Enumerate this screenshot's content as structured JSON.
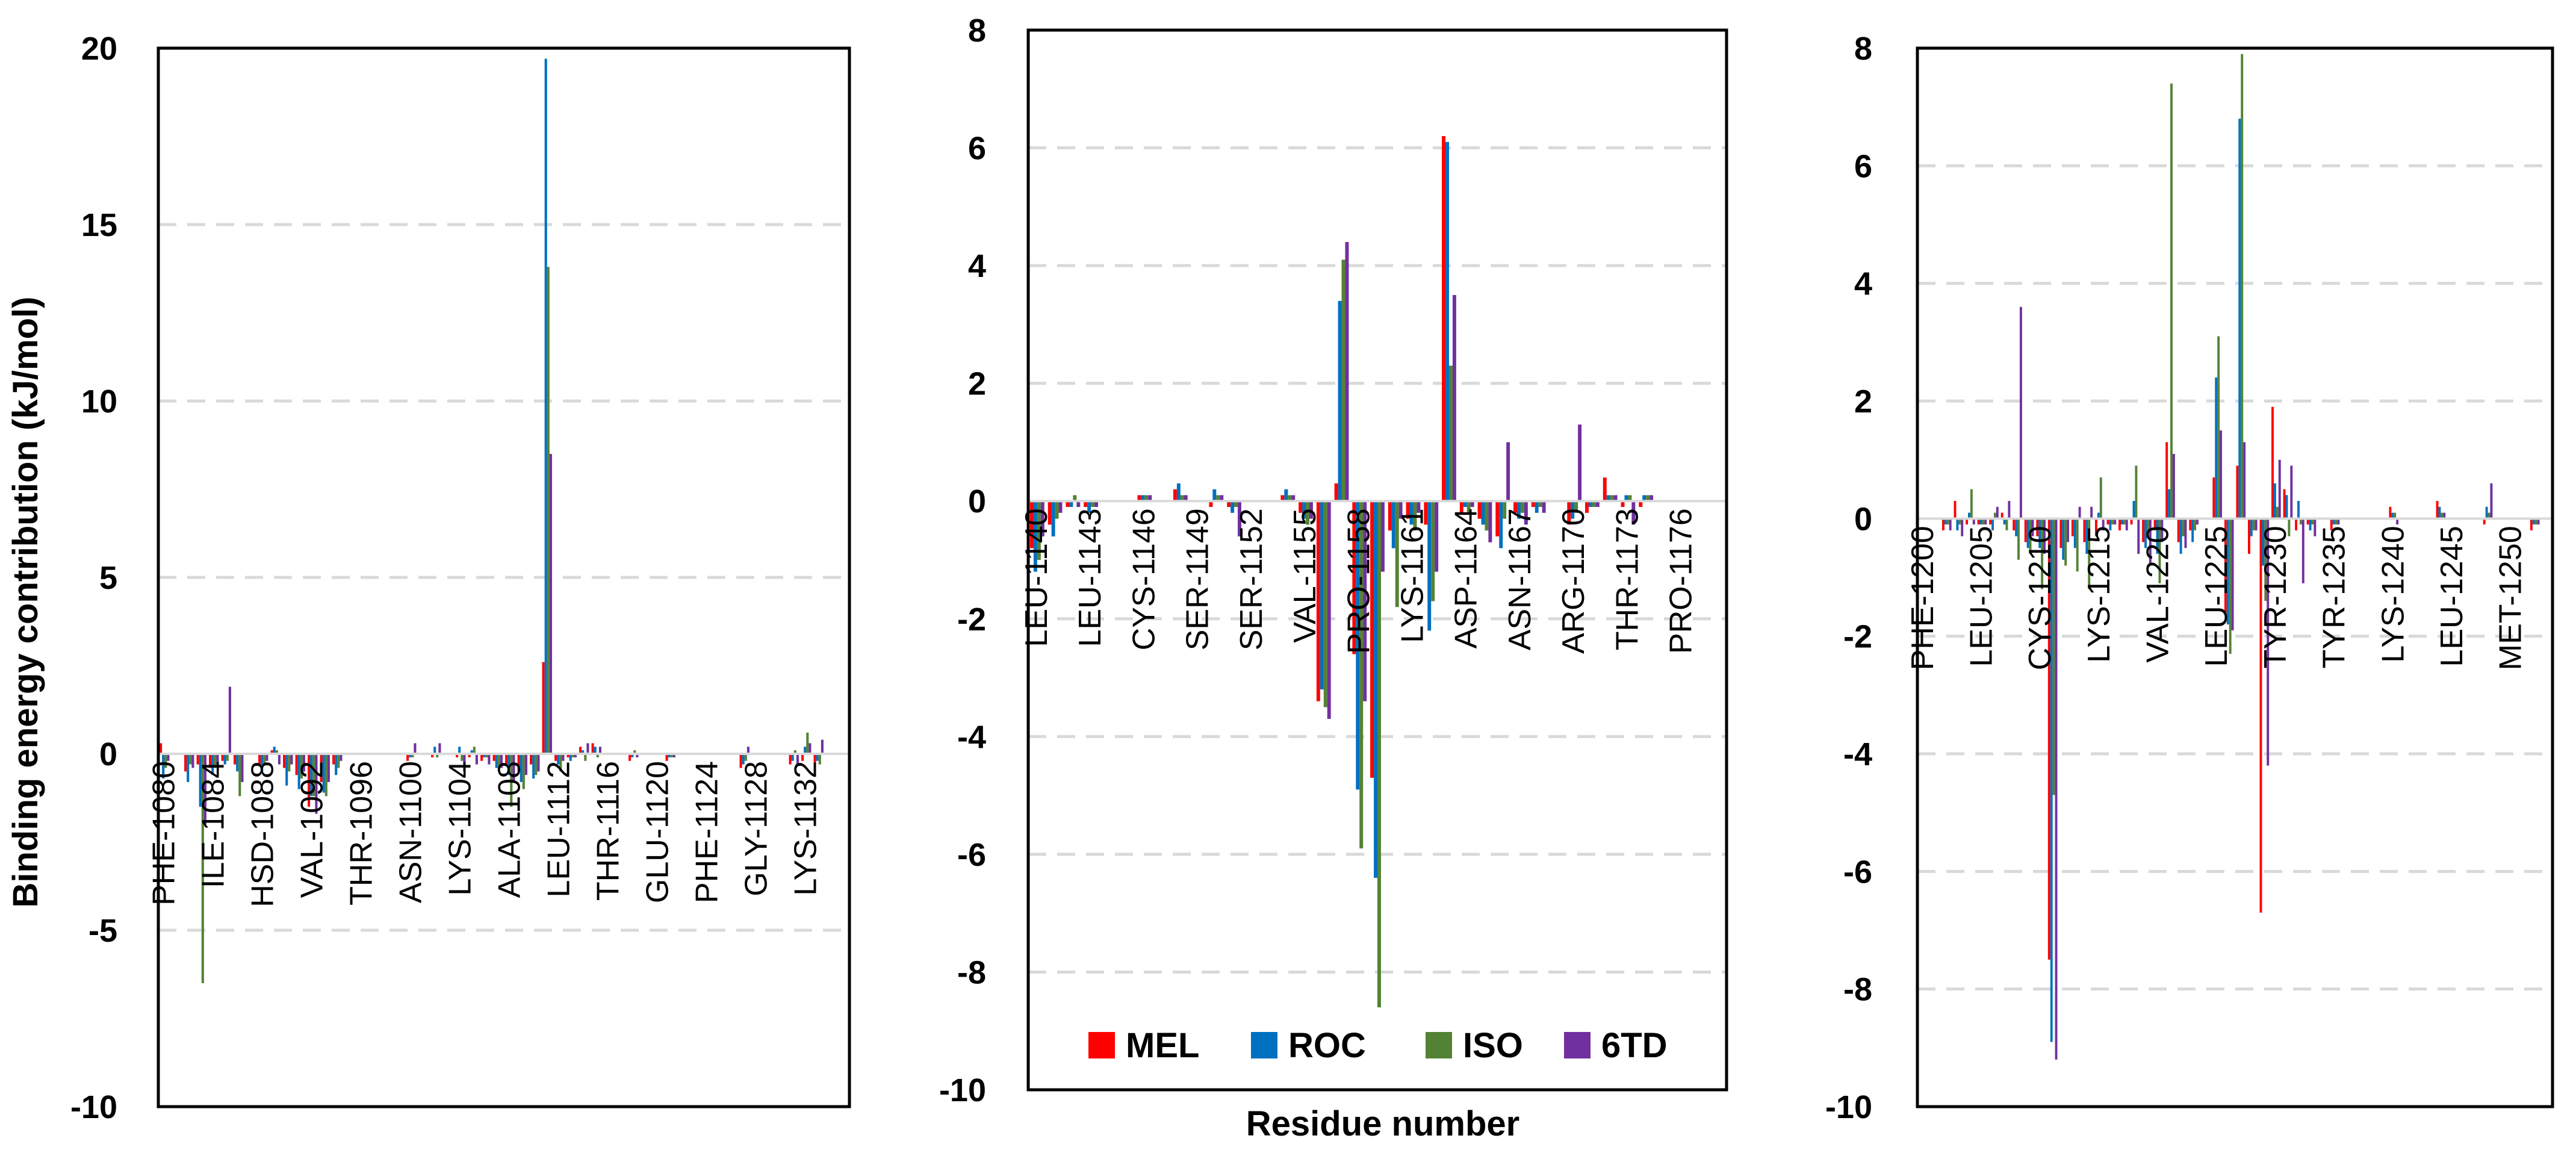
{
  "chart_data": {
    "type": "bar",
    "ylabel": "Binding energy contribution (kJ/mol)",
    "xlabel": "Residue number",
    "legend": {
      "position": "bottom-center of middle panel",
      "entries": [
        "MEL",
        "ROC",
        "ISO",
        "6TD"
      ]
    },
    "colors": {
      "MEL": "#ff0000",
      "ROC": "#0070c0",
      "ISO": "#548235",
      "6TD": "#7030a0"
    },
    "series_order": [
      "MEL",
      "ROC",
      "ISO",
      "6TD"
    ],
    "panels": [
      {
        "name": "panel-1",
        "ylim": [
          -10,
          20
        ],
        "yticks": [
          -10,
          -5,
          0,
          5,
          10,
          15,
          20
        ],
        "residue_range": [
          1080,
          1135
        ],
        "tick_labels": [
          "PHE-1080",
          "ILE-1084",
          "HSD-1088",
          "VAL-1092",
          "THR-1096",
          "ASN-1100",
          "LYS-1104",
          "ALA-1108",
          "LEU-1112",
          "THR-1116",
          "GLU-1120",
          "PHE-1124",
          "GLY-1128",
          "LYS-1132"
        ],
        "tick_residues": [
          1080,
          1084,
          1088,
          1092,
          1096,
          1100,
          1104,
          1108,
          1112,
          1116,
          1120,
          1124,
          1128,
          1132
        ],
        "values": [
          {
            "residue": 1080,
            "MEL": 0.3,
            "ROC": -0.7,
            "ISO": -0.4,
            "6TD": -0.2
          },
          {
            "residue": 1082,
            "MEL": -0.5,
            "ROC": -0.8,
            "ISO": -0.3,
            "6TD": -0.4
          },
          {
            "residue": 1083,
            "MEL": -0.3,
            "ROC": -1.5,
            "ISO": -6.5,
            "6TD": -2.0
          },
          {
            "residue": 1084,
            "MEL": -0.4,
            "ROC": -0.6,
            "ISO": -0.4,
            "6TD": -0.3
          },
          {
            "residue": 1085,
            "MEL": -0.2,
            "ROC": -0.3,
            "ISO": -0.2,
            "6TD": 1.9
          },
          {
            "residue": 1086,
            "MEL": -0.3,
            "ROC": -0.5,
            "ISO": -1.2,
            "6TD": -0.8
          },
          {
            "residue": 1088,
            "MEL": -0.3,
            "ROC": -0.5,
            "ISO": -0.3,
            "6TD": -0.2
          },
          {
            "residue": 1089,
            "MEL": 0.1,
            "ROC": 0.2,
            "ISO": 0.1,
            "6TD": -0.3
          },
          {
            "residue": 1090,
            "MEL": -0.4,
            "ROC": -0.9,
            "ISO": -0.5,
            "6TD": -0.3
          },
          {
            "residue": 1091,
            "MEL": -0.6,
            "ROC": -1.0,
            "ISO": -0.7,
            "6TD": -0.5
          },
          {
            "residue": 1092,
            "MEL": -1.5,
            "ROC": -1.2,
            "ISO": -1.2,
            "6TD": -1.7
          },
          {
            "residue": 1093,
            "MEL": -0.8,
            "ROC": -1.1,
            "ISO": -1.2,
            "6TD": -0.8
          },
          {
            "residue": 1094,
            "MEL": -0.3,
            "ROC": -0.6,
            "ISO": -0.4,
            "6TD": -0.2
          },
          {
            "residue": 1100,
            "MEL": -0.2,
            "ROC": -0.1,
            "ISO": -0.1,
            "6TD": 0.3
          },
          {
            "residue": 1102,
            "MEL": -0.1,
            "ROC": 0.2,
            "ISO": -0.1,
            "6TD": 0.3
          },
          {
            "residue": 1104,
            "MEL": -0.1,
            "ROC": 0.2,
            "ISO": -0.2,
            "6TD": -0.5
          },
          {
            "residue": 1105,
            "MEL": -0.1,
            "ROC": 0.1,
            "ISO": 0.2,
            "6TD": -0.3
          },
          {
            "residue": 1106,
            "MEL": -0.2,
            "ROC": -0.1,
            "ISO": -0.1,
            "6TD": -0.3
          },
          {
            "residue": 1107,
            "MEL": -0.2,
            "ROC": -0.4,
            "ISO": -0.5,
            "6TD": -0.4
          },
          {
            "residue": 1108,
            "MEL": -0.3,
            "ROC": -0.6,
            "ISO": -1.5,
            "6TD": -0.8
          },
          {
            "residue": 1109,
            "MEL": -0.5,
            "ROC": -0.8,
            "ISO": -1.0,
            "6TD": -0.6
          },
          {
            "residue": 1110,
            "MEL": -0.3,
            "ROC": -0.7,
            "ISO": -0.6,
            "6TD": -0.5
          },
          {
            "residue": 1111,
            "MEL": 2.6,
            "ROC": 19.7,
            "ISO": 13.8,
            "6TD": 8.5
          },
          {
            "residue": 1112,
            "MEL": -0.2,
            "ROC": -0.3,
            "ISO": -0.5,
            "6TD": -0.2
          },
          {
            "residue": 1113,
            "MEL": -0.1,
            "ROC": -0.2,
            "ISO": -0.1,
            "6TD": -0.1
          },
          {
            "residue": 1114,
            "MEL": 0.2,
            "ROC": 0.1,
            "ISO": -0.2,
            "6TD": 0.3
          },
          {
            "residue": 1115,
            "MEL": 0.3,
            "ROC": 0.2,
            "ISO": -0.1,
            "6TD": 0.2
          },
          {
            "residue": 1118,
            "MEL": -0.2,
            "ROC": -0.1,
            "ISO": 0.1,
            "6TD": -0.1
          },
          {
            "residue": 1121,
            "MEL": -0.2,
            "ROC": -0.1,
            "ISO": -0.1,
            "6TD": -0.1
          },
          {
            "residue": 1127,
            "MEL": -0.4,
            "ROC": -0.3,
            "ISO": -0.2,
            "6TD": 0.2
          },
          {
            "residue": 1131,
            "MEL": -0.3,
            "ROC": -0.2,
            "ISO": 0.1,
            "6TD": -0.3
          },
          {
            "residue": 1132,
            "MEL": -0.2,
            "ROC": 0.2,
            "ISO": 0.6,
            "6TD": 0.3
          },
          {
            "residue": 1133,
            "MEL": -0.3,
            "ROC": -0.2,
            "ISO": -0.3,
            "6TD": 0.4
          }
        ]
      },
      {
        "name": "panel-2",
        "ylim": [
          -10,
          8
        ],
        "yticks": [
          -10,
          -8,
          -6,
          -4,
          -2,
          0,
          2,
          4,
          6,
          8
        ],
        "residue_range": [
          1140,
          1178
        ],
        "tick_labels": [
          "LEU-1140",
          "LEU-1143",
          "CYS-1146",
          "SER-1149",
          "SER-1152",
          "VAL-1155",
          "PRO-1158",
          "LYS-1161",
          "ASP-1164",
          "ASN-1167",
          "ARG-1170",
          "THR-1173",
          "PRO-1176"
        ],
        "tick_residues": [
          1140,
          1143,
          1146,
          1149,
          1152,
          1155,
          1158,
          1161,
          1164,
          1167,
          1170,
          1173,
          1176
        ],
        "values": [
          {
            "residue": 1140,
            "MEL": -0.8,
            "ROC": -1.2,
            "ISO": -1.0,
            "6TD": -0.6
          },
          {
            "residue": 1141,
            "MEL": -0.4,
            "ROC": -0.6,
            "ISO": -0.3,
            "6TD": -0.2
          },
          {
            "residue": 1142,
            "MEL": -0.1,
            "ROC": -0.1,
            "ISO": 0.1,
            "6TD": -0.1
          },
          {
            "residue": 1143,
            "MEL": -0.1,
            "ROC": -0.2,
            "ISO": -0.1,
            "6TD": -0.1
          },
          {
            "residue": 1146,
            "MEL": 0.1,
            "ROC": 0.1,
            "ISO": 0.1,
            "6TD": 0.1
          },
          {
            "residue": 1148,
            "MEL": 0.2,
            "ROC": 0.3,
            "ISO": 0.1,
            "6TD": 0.1
          },
          {
            "residue": 1150,
            "MEL": -0.1,
            "ROC": 0.2,
            "ISO": 0.1,
            "6TD": 0.1
          },
          {
            "residue": 1151,
            "MEL": -0.1,
            "ROC": -0.2,
            "ISO": -0.1,
            "6TD": -0.6
          },
          {
            "residue": 1154,
            "MEL": 0.1,
            "ROC": 0.2,
            "ISO": 0.1,
            "6TD": 0.1
          },
          {
            "residue": 1155,
            "MEL": -0.2,
            "ROC": -0.3,
            "ISO": -0.4,
            "6TD": -0.3
          },
          {
            "residue": 1156,
            "MEL": -3.4,
            "ROC": -3.2,
            "ISO": -3.5,
            "6TD": -3.7
          },
          {
            "residue": 1157,
            "MEL": 0.3,
            "ROC": 3.4,
            "ISO": 4.1,
            "6TD": 4.4
          },
          {
            "residue": 1158,
            "MEL": -2.6,
            "ROC": -4.9,
            "ISO": -5.9,
            "6TD": -3.4
          },
          {
            "residue": 1159,
            "MEL": -4.7,
            "ROC": -6.4,
            "ISO": -8.6,
            "6TD": -1.2
          },
          {
            "residue": 1160,
            "MEL": -0.5,
            "ROC": -0.8,
            "ISO": -1.8,
            "6TD": -0.3
          },
          {
            "residue": 1161,
            "MEL": -0.3,
            "ROC": -0.4,
            "ISO": -0.5,
            "6TD": -0.2
          },
          {
            "residue": 1162,
            "MEL": -0.4,
            "ROC": -2.2,
            "ISO": -1.7,
            "6TD": -1.2
          },
          {
            "residue": 1163,
            "MEL": 6.2,
            "ROC": 6.1,
            "ISO": 2.3,
            "6TD": 3.5
          },
          {
            "residue": 1164,
            "MEL": -0.2,
            "ROC": -0.1,
            "ISO": -0.2,
            "6TD": -0.1
          },
          {
            "residue": 1165,
            "MEL": -0.3,
            "ROC": -0.4,
            "ISO": -0.5,
            "6TD": -0.7
          },
          {
            "residue": 1166,
            "MEL": -0.6,
            "ROC": -0.8,
            "ISO": -0.3,
            "6TD": 1.0
          },
          {
            "residue": 1167,
            "MEL": -0.2,
            "ROC": -0.3,
            "ISO": -0.2,
            "6TD": -0.4
          },
          {
            "residue": 1168,
            "MEL": -0.1,
            "ROC": -0.2,
            "ISO": -0.1,
            "6TD": -0.2
          },
          {
            "residue": 1170,
            "MEL": -0.4,
            "ROC": -0.3,
            "ISO": -0.2,
            "6TD": 1.3
          },
          {
            "residue": 1171,
            "MEL": -0.2,
            "ROC": -0.1,
            "ISO": -0.1,
            "6TD": -0.1
          },
          {
            "residue": 1172,
            "MEL": 0.4,
            "ROC": 0.1,
            "ISO": 0.1,
            "6TD": 0.1
          },
          {
            "residue": 1173,
            "MEL": -0.1,
            "ROC": 0.1,
            "ISO": 0.1,
            "6TD": -0.4
          },
          {
            "residue": 1174,
            "MEL": -0.1,
            "ROC": 0.1,
            "ISO": 0.1,
            "6TD": 0.1
          }
        ]
      },
      {
        "name": "panel-3",
        "ylim": [
          -10,
          8
        ],
        "yticks": [
          -10,
          -8,
          -6,
          -4,
          -2,
          0,
          2,
          4,
          6,
          8
        ],
        "residue_range": [
          1200,
          1253
        ],
        "tick_labels": [
          "PHE-1200",
          "LEU-1205",
          "CYS-1210",
          "LYS-1215",
          "VAL-1220",
          "LEU-1225",
          "TYR-1230",
          "TYR-1235",
          "LYS-1240",
          "LEU-1245",
          "MET-1250"
        ],
        "tick_residues": [
          1200,
          1205,
          1210,
          1215,
          1220,
          1225,
          1230,
          1235,
          1240,
          1245,
          1250
        ],
        "values": [
          {
            "residue": 1202,
            "MEL": -0.2,
            "ROC": -0.1,
            "ISO": -0.1,
            "6TD": -0.2
          },
          {
            "residue": 1203,
            "MEL": 0.3,
            "ROC": -0.2,
            "ISO": -0.1,
            "6TD": -0.3
          },
          {
            "residue": 1204,
            "MEL": -0.1,
            "ROC": 0.1,
            "ISO": 0.5,
            "6TD": -0.1
          },
          {
            "residue": 1205,
            "MEL": -0.1,
            "ROC": -0.1,
            "ISO": -0.1,
            "6TD": -0.1
          },
          {
            "residue": 1206,
            "MEL": -0.1,
            "ROC": -0.2,
            "ISO": 0.1,
            "6TD": 0.2
          },
          {
            "residue": 1207,
            "MEL": 0.1,
            "ROC": -0.1,
            "ISO": -0.2,
            "6TD": 0.3
          },
          {
            "residue": 1208,
            "MEL": -0.2,
            "ROC": -0.3,
            "ISO": -0.7,
            "6TD": 3.6
          },
          {
            "residue": 1209,
            "MEL": -0.4,
            "ROC": -0.5,
            "ISO": -0.6,
            "6TD": -0.3
          },
          {
            "residue": 1210,
            "MEL": -0.3,
            "ROC": -0.5,
            "ISO": -1.2,
            "6TD": -0.6
          },
          {
            "residue": 1211,
            "MEL": -7.5,
            "ROC": -8.9,
            "ISO": -4.7,
            "6TD": -9.2
          },
          {
            "residue": 1212,
            "MEL": -0.5,
            "ROC": -0.7,
            "ISO": -0.8,
            "6TD": -0.4
          },
          {
            "residue": 1213,
            "MEL": -0.3,
            "ROC": -0.5,
            "ISO": -0.9,
            "6TD": 0.2
          },
          {
            "residue": 1214,
            "MEL": -0.4,
            "ROC": -0.6,
            "ISO": -1.2,
            "6TD": 0.2
          },
          {
            "residue": 1215,
            "MEL": -0.3,
            "ROC": 0.1,
            "ISO": 0.7,
            "6TD": -0.2
          },
          {
            "residue": 1216,
            "MEL": -0.1,
            "ROC": -0.2,
            "ISO": -0.1,
            "6TD": -0.1
          },
          {
            "residue": 1217,
            "MEL": -0.2,
            "ROC": -0.1,
            "ISO": -0.1,
            "6TD": -0.2
          },
          {
            "residue": 1218,
            "MEL": -0.1,
            "ROC": 0.3,
            "ISO": 0.9,
            "6TD": -0.6
          },
          {
            "residue": 1219,
            "MEL": -0.4,
            "ROC": -0.5,
            "ISO": -0.3,
            "6TD": -0.8
          },
          {
            "residue": 1220,
            "MEL": -0.2,
            "ROC": -0.6,
            "ISO": -1.1,
            "6TD": -0.4
          },
          {
            "residue": 1221,
            "MEL": 1.3,
            "ROC": 0.5,
            "ISO": 7.4,
            "6TD": 1.1
          },
          {
            "residue": 1222,
            "MEL": -0.4,
            "ROC": -0.6,
            "ISO": -0.3,
            "6TD": -0.5
          },
          {
            "residue": 1223,
            "MEL": -0.2,
            "ROC": -0.4,
            "ISO": -0.2,
            "6TD": -0.1
          },
          {
            "residue": 1225,
            "MEL": 0.7,
            "ROC": 2.4,
            "ISO": 3.1,
            "6TD": 1.5
          },
          {
            "residue": 1226,
            "MEL": -1.6,
            "ROC": -1.8,
            "ISO": -2.3,
            "6TD": -1.9
          },
          {
            "residue": 1227,
            "MEL": 0.9,
            "ROC": 6.8,
            "ISO": 7.9,
            "6TD": 1.3
          },
          {
            "residue": 1228,
            "MEL": -0.6,
            "ROC": -0.3,
            "ISO": -0.2,
            "6TD": -0.2
          },
          {
            "residue": 1229,
            "MEL": -6.7,
            "ROC": -0.8,
            "ISO": -1.4,
            "6TD": -4.2
          },
          {
            "residue": 1230,
            "MEL": 1.9,
            "ROC": 0.6,
            "ISO": 0.2,
            "6TD": 1.0
          },
          {
            "residue": 1231,
            "MEL": 0.5,
            "ROC": 0.4,
            "ISO": -0.3,
            "6TD": 0.9
          },
          {
            "residue": 1232,
            "MEL": -0.2,
            "ROC": 0.3,
            "ISO": -0.1,
            "6TD": -1.1
          },
          {
            "residue": 1233,
            "MEL": -0.1,
            "ROC": -0.2,
            "ISO": -0.1,
            "6TD": -0.3
          },
          {
            "residue": 1235,
            "MEL": -0.2,
            "ROC": -0.1,
            "ISO": -0.1,
            "6TD": -0.1
          },
          {
            "residue": 1240,
            "MEL": 0.2,
            "ROC": 0.1,
            "ISO": 0.1,
            "6TD": -0.1
          },
          {
            "residue": 1244,
            "MEL": 0.3,
            "ROC": 0.2,
            "ISO": 0.1,
            "6TD": 0.1
          },
          {
            "residue": 1248,
            "MEL": -0.1,
            "ROC": 0.2,
            "ISO": 0.1,
            "6TD": 0.6
          },
          {
            "residue": 1252,
            "MEL": -0.2,
            "ROC": -0.1,
            "ISO": -0.1,
            "6TD": -0.1
          }
        ]
      }
    ]
  }
}
